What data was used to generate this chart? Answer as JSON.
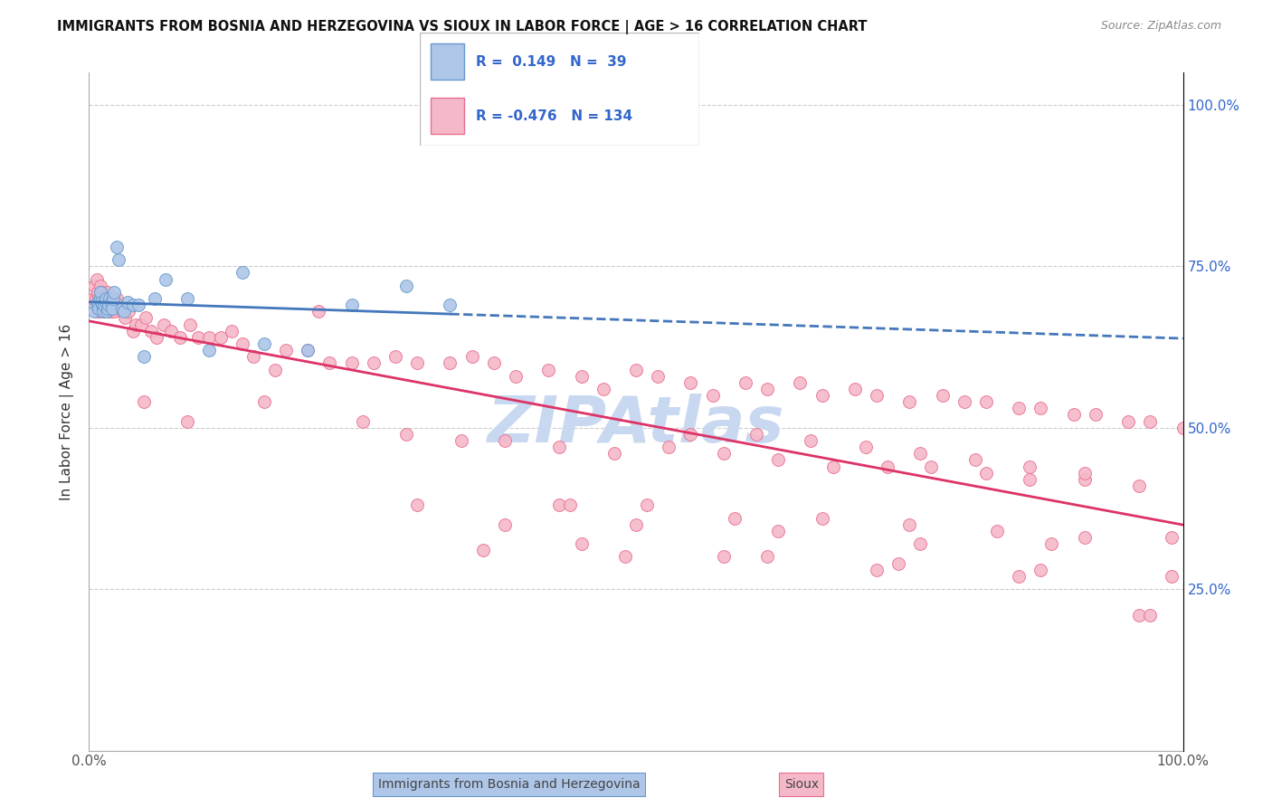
{
  "title": "IMMIGRANTS FROM BOSNIA AND HERZEGOVINA VS SIOUX IN LABOR FORCE | AGE > 16 CORRELATION CHART",
  "source": "Source: ZipAtlas.com",
  "ylabel": "In Labor Force | Age > 16",
  "xlim": [
    0,
    1
  ],
  "ylim": [
    0,
    1.05
  ],
  "x_tick_labels": [
    "0.0%",
    "100.0%"
  ],
  "x_tick_positions": [
    0,
    1
  ],
  "y_tick_positions": [
    0.25,
    0.5,
    0.75,
    1.0
  ],
  "right_tick_labels": [
    "25.0%",
    "50.0%",
    "75.0%",
    "100.0%"
  ],
  "blue_R": 0.149,
  "blue_N": 39,
  "pink_R": -0.476,
  "pink_N": 134,
  "blue_fill_color": "#aec6e8",
  "pink_fill_color": "#f5b8c8",
  "blue_edge_color": "#6699cc",
  "pink_edge_color": "#e87090",
  "blue_line_color": "#4477bb",
  "pink_line_color": "#dd3366",
  "legend_box_color": "#dddddd",
  "legend_text_color": "#3366cc",
  "watermark_color": "#c8d8f0",
  "right_axis_color": "#3366cc",
  "blue_x": [
    0.005,
    0.007,
    0.008,
    0.009,
    0.01,
    0.01,
    0.011,
    0.012,
    0.013,
    0.013,
    0.014,
    0.015,
    0.015,
    0.016,
    0.017,
    0.018,
    0.019,
    0.02,
    0.021,
    0.022,
    0.023,
    0.025,
    0.027,
    0.03,
    0.032,
    0.035,
    0.04,
    0.045,
    0.05,
    0.06,
    0.07,
    0.09,
    0.11,
    0.14,
    0.16,
    0.2,
    0.24,
    0.29,
    0.33
  ],
  "blue_y": [
    0.68,
    0.69,
    0.695,
    0.685,
    0.7,
    0.71,
    0.695,
    0.69,
    0.685,
    0.68,
    0.69,
    0.695,
    0.7,
    0.68,
    0.685,
    0.69,
    0.7,
    0.695,
    0.685,
    0.7,
    0.71,
    0.78,
    0.76,
    0.685,
    0.68,
    0.695,
    0.69,
    0.69,
    0.61,
    0.7,
    0.73,
    0.7,
    0.62,
    0.74,
    0.63,
    0.62,
    0.69,
    0.72,
    0.69
  ],
  "pink_x": [
    0.004,
    0.005,
    0.006,
    0.007,
    0.008,
    0.008,
    0.009,
    0.01,
    0.01,
    0.011,
    0.012,
    0.013,
    0.013,
    0.014,
    0.015,
    0.016,
    0.017,
    0.018,
    0.019,
    0.02,
    0.022,
    0.023,
    0.025,
    0.027,
    0.03,
    0.033,
    0.036,
    0.04,
    0.043,
    0.048,
    0.052,
    0.057,
    0.062,
    0.068,
    0.075,
    0.083,
    0.092,
    0.1,
    0.11,
    0.12,
    0.13,
    0.14,
    0.15,
    0.17,
    0.18,
    0.2,
    0.22,
    0.24,
    0.26,
    0.28,
    0.3,
    0.33,
    0.35,
    0.37,
    0.39,
    0.42,
    0.45,
    0.47,
    0.5,
    0.52,
    0.55,
    0.57,
    0.6,
    0.62,
    0.65,
    0.67,
    0.7,
    0.72,
    0.75,
    0.78,
    0.8,
    0.82,
    0.85,
    0.87,
    0.9,
    0.92,
    0.95,
    0.97,
    1.0,
    0.05,
    0.09,
    0.16,
    0.21,
    0.25,
    0.29,
    0.34,
    0.38,
    0.43,
    0.48,
    0.53,
    0.58,
    0.63,
    0.68,
    0.73,
    0.77,
    0.82,
    0.86,
    0.91,
    0.96,
    0.55,
    0.61,
    0.66,
    0.71,
    0.76,
    0.81,
    0.86,
    0.91,
    0.96,
    0.43,
    0.51,
    0.59,
    0.67,
    0.75,
    0.83,
    0.91,
    0.99,
    0.38,
    0.5,
    0.63,
    0.76,
    0.88,
    0.36,
    0.49,
    0.62,
    0.74,
    0.87,
    0.99,
    0.45,
    0.58,
    0.72,
    0.85,
    0.97,
    0.3,
    0.44
  ],
  "pink_y": [
    0.7,
    0.72,
    0.7,
    0.73,
    0.71,
    0.68,
    0.7,
    0.68,
    0.72,
    0.69,
    0.71,
    0.7,
    0.68,
    0.7,
    0.69,
    0.68,
    0.71,
    0.69,
    0.68,
    0.7,
    0.68,
    0.68,
    0.7,
    0.69,
    0.68,
    0.67,
    0.68,
    0.65,
    0.66,
    0.66,
    0.67,
    0.65,
    0.64,
    0.66,
    0.65,
    0.64,
    0.66,
    0.64,
    0.64,
    0.64,
    0.65,
    0.63,
    0.61,
    0.59,
    0.62,
    0.62,
    0.6,
    0.6,
    0.6,
    0.61,
    0.6,
    0.6,
    0.61,
    0.6,
    0.58,
    0.59,
    0.58,
    0.56,
    0.59,
    0.58,
    0.57,
    0.55,
    0.57,
    0.56,
    0.57,
    0.55,
    0.56,
    0.55,
    0.54,
    0.55,
    0.54,
    0.54,
    0.53,
    0.53,
    0.52,
    0.52,
    0.51,
    0.51,
    0.5,
    0.54,
    0.51,
    0.54,
    0.68,
    0.51,
    0.49,
    0.48,
    0.48,
    0.47,
    0.46,
    0.47,
    0.46,
    0.45,
    0.44,
    0.44,
    0.44,
    0.43,
    0.42,
    0.42,
    0.41,
    0.49,
    0.49,
    0.48,
    0.47,
    0.46,
    0.45,
    0.44,
    0.43,
    0.21,
    0.38,
    0.38,
    0.36,
    0.36,
    0.35,
    0.34,
    0.33,
    0.33,
    0.35,
    0.35,
    0.34,
    0.32,
    0.32,
    0.31,
    0.3,
    0.3,
    0.29,
    0.28,
    0.27,
    0.32,
    0.3,
    0.28,
    0.27,
    0.21,
    0.38,
    0.38
  ]
}
